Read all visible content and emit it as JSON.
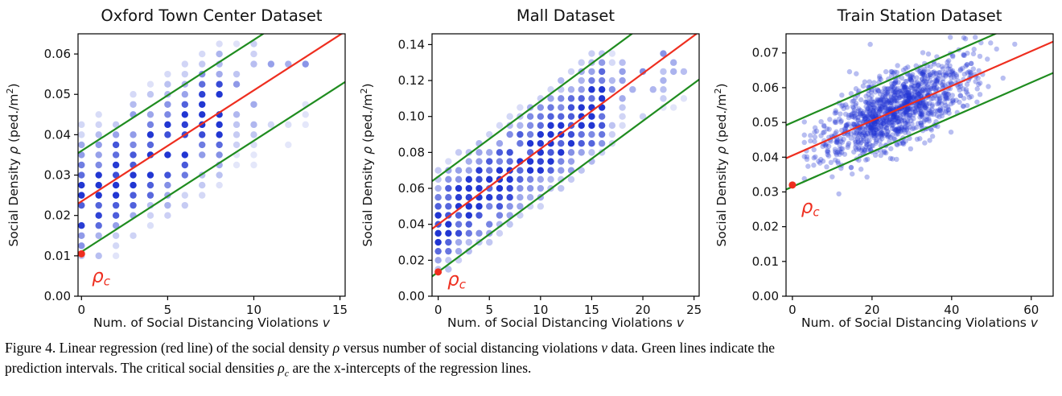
{
  "figure": {
    "caption_lines": [
      [
        {
          "t": "Figure 4. Linear regression (red line) of the social density "
        },
        {
          "t": "ρ",
          "i": true
        },
        {
          "t": " versus number of social distancing violations "
        },
        {
          "t": "v",
          "i": true
        },
        {
          "t": " data. Green lines indicate the"
        }
      ],
      [
        {
          "t": "prediction intervals. The critical social densities "
        },
        {
          "t": "ρ",
          "i": true
        },
        {
          "t": "c",
          "i": true,
          "sub": true
        },
        {
          "t": " are the x-intercepts of the regression lines."
        }
      ]
    ]
  },
  "chart_data": [
    {
      "type": "scatter",
      "title": "Oxford Town Center Dataset",
      "xlabel_segments": [
        {
          "t": "Num. of Social Distancing Violations "
        },
        {
          "t": "v",
          "i": true
        }
      ],
      "ylabel_segments": [
        {
          "t": "Social Density "
        },
        {
          "t": "ρ",
          "i": true
        },
        {
          "t": " (ped./m"
        },
        {
          "t": "2",
          "sup": true
        },
        {
          "t": ")"
        }
      ],
      "xlim": [
        -0.2,
        15.3
      ],
      "ylim": [
        0,
        0.065
      ],
      "xticks": [
        0,
        5,
        10,
        15
      ],
      "yticks": [
        0.0,
        0.01,
        0.02,
        0.03,
        0.04,
        0.05,
        0.06
      ],
      "ytick_decimals": 2,
      "point_color": "#2136d2",
      "regression_line": {
        "color": "#ee2e1f",
        "intercept": 0.0235,
        "slope": 0.00275
      },
      "prediction_interval": {
        "color": "#1f8c1f",
        "upper_intercept": 0.036,
        "lower_intercept": 0.011,
        "slope": 0.00275
      },
      "critical_density": {
        "value": 0.0105,
        "label": "ρ",
        "sub": "c",
        "label_x": 0.6,
        "label_y": 0.0035
      },
      "points": {
        "mode": "grid",
        "x_min": 0,
        "x_max": 13,
        "x_step": 1,
        "y_start": 0.01,
        "y_step": 0.0025,
        "band": 0.019,
        "y_floor": 0.01,
        "y_ceil": 0.0645,
        "alpha_sigma": 0.0085,
        "fade_x": 8,
        "marker_size": 4.2,
        "seed": 11
      }
    },
    {
      "type": "scatter",
      "title": "Mall Dataset",
      "xlabel_segments": [
        {
          "t": "Num. of Social Distancing Violations "
        },
        {
          "t": "v",
          "i": true
        }
      ],
      "ylabel_segments": [
        {
          "t": "Social Density "
        },
        {
          "t": "ρ",
          "i": true
        },
        {
          "t": " (ped./m"
        },
        {
          "t": "2",
          "sup": true
        },
        {
          "t": ")"
        }
      ],
      "xlim": [
        -0.6,
        25.5
      ],
      "ylim": [
        0,
        0.146
      ],
      "xticks": [
        0,
        5,
        10,
        15,
        20,
        25
      ],
      "yticks": [
        0.0,
        0.02,
        0.04,
        0.06,
        0.08,
        0.1,
        0.12,
        0.14
      ],
      "ytick_decimals": 2,
      "point_color": "#2136d2",
      "regression_line": {
        "color": "#ee2e1f",
        "intercept": 0.04,
        "slope": 0.0042
      },
      "prediction_interval": {
        "color": "#1f8c1f",
        "upper_intercept": 0.0665,
        "lower_intercept": 0.0135,
        "slope": 0.0042
      },
      "critical_density": {
        "value": 0.0135,
        "label": "ρ",
        "sub": "c",
        "label_x": 0.9,
        "label_y": 0.006
      },
      "points": {
        "mode": "grid",
        "x_min": 0,
        "x_max": 24,
        "x_step": 1,
        "y_start": 0.015,
        "y_step": 0.005,
        "band": 0.032,
        "y_floor": 0.015,
        "y_ceil": 0.137,
        "alpha_sigma": 0.016,
        "fade_x": 16,
        "marker_size": 4.2,
        "seed": 22
      }
    },
    {
      "type": "scatter",
      "title": "Train Station Dataset",
      "xlabel_segments": [
        {
          "t": "Num. of Social Distancing Violations "
        },
        {
          "t": "v",
          "i": true
        }
      ],
      "ylabel_segments": [
        {
          "t": "Social Density "
        },
        {
          "t": "ρ",
          "i": true
        },
        {
          "t": " (ped./m"
        },
        {
          "t": "2",
          "sup": true
        },
        {
          "t": ")"
        }
      ],
      "xlim": [
        -1.6,
        65.5
      ],
      "ylim": [
        0,
        0.0755
      ],
      "xticks": [
        0,
        20,
        40,
        60
      ],
      "yticks": [
        0.0,
        0.01,
        0.02,
        0.03,
        0.04,
        0.05,
        0.06,
        0.07
      ],
      "ytick_decimals": 2,
      "point_color": "#2136d2",
      "regression_line": {
        "color": "#ee2e1f",
        "intercept": 0.0405,
        "slope": 0.0005
      },
      "prediction_interval": {
        "color": "#1f8c1f",
        "upper_intercept": 0.05,
        "lower_intercept": 0.0315,
        "slope": 0.0005
      },
      "critical_density": {
        "value": 0.032,
        "label": "ρ",
        "sub": "c",
        "label_x": 2.2,
        "label_y": 0.024
      },
      "points": {
        "mode": "cloud",
        "n": 1200,
        "x_mean": 26,
        "x_sd": 9.5,
        "x_clip_min": 3,
        "x_clip_max": 63.5,
        "y_sd": 0.0054,
        "y_floor": 0.013,
        "y_ceil": 0.0745,
        "alpha": 0.32,
        "marker_size": 3.2,
        "seed": 33
      }
    }
  ]
}
